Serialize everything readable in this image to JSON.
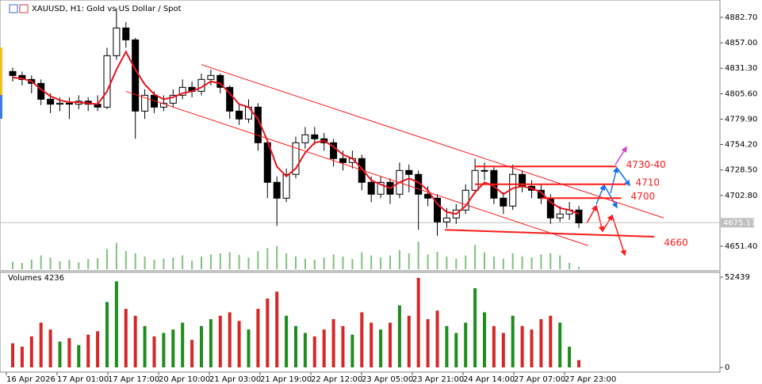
{
  "chart_data": {
    "type": "candlestick",
    "title": "XAUUSD, H1:  Gold vs US Dollar / Spot",
    "volume_title": "Volumes 4236",
    "open": [
      4828,
      4824,
      4820,
      4816,
      4800,
      4795,
      4796,
      4795,
      4798,
      4795,
      4792,
      4844,
      4872,
      4860,
      4788,
      4804,
      4792,
      4796,
      4804,
      4812,
      4808,
      4820,
      4824,
      4812,
      4788,
      4780,
      4792,
      4756,
      4716,
      4700,
      4724,
      4756,
      4764,
      4760,
      4756,
      4740,
      4736,
      4740,
      4716,
      4704,
      4716,
      4704,
      4728,
      4724,
      4704,
      4700,
      4676,
      4680,
      4688,
      4708,
      4728,
      4728,
      4700,
      4692,
      4724,
      4712,
      4708,
      4700,
      4680,
      4684,
      4688
    ],
    "high": [
      4832,
      4828,
      4824,
      4820,
      4806,
      4802,
      4802,
      4804,
      4802,
      4804,
      4852,
      4892,
      4878,
      4862,
      4810,
      4808,
      4804,
      4810,
      4820,
      4818,
      4826,
      4830,
      4826,
      4814,
      4796,
      4800,
      4796,
      4760,
      4722,
      4730,
      4762,
      4772,
      4772,
      4766,
      4760,
      4748,
      4748,
      4744,
      4722,
      4722,
      4720,
      4736,
      4734,
      4728,
      4712,
      4704,
      4690,
      4694,
      4714,
      4740,
      4736,
      4732,
      4706,
      4734,
      4728,
      4718,
      4714,
      4704,
      4692,
      4696,
      4692
    ],
    "low": [
      4818,
      4814,
      4806,
      4794,
      4786,
      4788,
      4780,
      4790,
      4788,
      4788,
      4790,
      4840,
      4852,
      4760,
      4780,
      4786,
      4788,
      4792,
      4800,
      4802,
      4804,
      4814,
      4806,
      4780,
      4774,
      4776,
      4748,
      4700,
      4672,
      4696,
      4720,
      4750,
      4754,
      4748,
      4732,
      4728,
      4730,
      4708,
      4696,
      4700,
      4694,
      4700,
      4706,
      4668,
      4692,
      4662,
      4670,
      4674,
      4684,
      4704,
      4718,
      4694,
      4684,
      4688,
      4706,
      4700,
      4694,
      4674,
      4676,
      4678,
      4670
    ],
    "close": [
      4824,
      4820,
      4816,
      4800,
      4795,
      4796,
      4795,
      4798,
      4795,
      4792,
      4844,
      4872,
      4860,
      4788,
      4804,
      4792,
      4796,
      4804,
      4812,
      4808,
      4820,
      4824,
      4812,
      4788,
      4780,
      4792,
      4756,
      4716,
      4700,
      4724,
      4756,
      4764,
      4760,
      4756,
      4740,
      4736,
      4740,
      4716,
      4704,
      4716,
      4704,
      4728,
      4724,
      4704,
      4700,
      4676,
      4680,
      4688,
      4708,
      4728,
      4728,
      4700,
      4692,
      4724,
      4712,
      4708,
      4700,
      4680,
      4684,
      4688,
      4675
    ],
    "ma": [
      4822,
      4821,
      4818,
      4810,
      4803,
      4799,
      4797,
      4797,
      4796,
      4795,
      4808,
      4830,
      4848,
      4830,
      4815,
      4805,
      4800,
      4802,
      4806,
      4808,
      4812,
      4818,
      4816,
      4806,
      4795,
      4792,
      4780,
      4758,
      4732,
      4722,
      4730,
      4746,
      4756,
      4758,
      4752,
      4744,
      4740,
      4730,
      4718,
      4714,
      4710,
      4716,
      4720,
      4716,
      4708,
      4694,
      4686,
      4684,
      4692,
      4706,
      4716,
      4712,
      4704,
      4710,
      4712,
      4710,
      4706,
      4696,
      4690,
      4688,
      4684
    ],
    "volume": [
      14000,
      12000,
      18000,
      26000,
      22000,
      15000,
      17000,
      13000,
      19000,
      21000,
      38000,
      50000,
      34000,
      30000,
      24000,
      18000,
      20000,
      22000,
      26000,
      16000,
      24000,
      28000,
      30000,
      32000,
      27000,
      22000,
      34000,
      40000,
      44000,
      30000,
      24000,
      20000,
      18000,
      22000,
      28000,
      24000,
      19000,
      32000,
      26000,
      22000,
      26000,
      36000,
      30000,
      52000,
      28000,
      33000,
      24000,
      20000,
      26000,
      46000,
      32000,
      24000,
      20000,
      30000,
      24000,
      22000,
      28000,
      30000,
      26000,
      12000,
      4236
    ],
    "ma_color": "#e8141e",
    "up_volume_color": "#1e8c1e",
    "down_volume_color": "#d62728",
    "annotation_color": "#ff1a1a",
    "ylim": [
      4628.2,
      4900.3
    ],
    "yticks": [
      {
        "value": 4882.7,
        "label": "4882.70"
      },
      {
        "value": 4857,
        "label": "4857.00"
      },
      {
        "value": 4831.3,
        "label": "4831.30"
      },
      {
        "value": 4805.6,
        "label": "4805.60"
      },
      {
        "value": 4779.9,
        "label": "4779.90"
      },
      {
        "value": 4754.2,
        "label": "4754.20"
      },
      {
        "value": 4728.5,
        "label": "4728.50"
      },
      {
        "value": 4702.8,
        "label": "4702.80"
      },
      {
        "value": 4651.4,
        "label": "4651.40"
      }
    ],
    "current_price": {
      "value": 4675.17,
      "label": "4675.17"
    },
    "volume_ylim": [
      0,
      52439
    ],
    "volume_yticks": [
      0,
      52439
    ],
    "x_labels": [
      "16 Apr 2026",
      "17 Apr 01:00",
      "17 Apr 17:00",
      "20 Apr 10:00",
      "21 Apr 03:00",
      "21 Apr 19:00",
      "22 Apr 12:00",
      "23 Apr 05:00",
      "23 Apr 21:00",
      "24 Apr 14:00",
      "27 Apr 07:00",
      "27 Apr 23:00"
    ],
    "trendlines": [
      {
        "x": [
          20,
          69
        ],
        "y": [
          4835,
          4680
        ]
      },
      {
        "x": [
          12,
          61
        ],
        "y": [
          4808,
          4652
        ]
      }
    ],
    "levels": [
      {
        "label": "4730-40",
        "x": [
          49,
          64
        ],
        "y": [
          4732,
          4732
        ]
      },
      {
        "label": "4710",
        "x": [
          49,
          65
        ],
        "y": [
          4714,
          4714
        ]
      },
      {
        "label": "4700",
        "x": [
          56,
          64.5
        ],
        "y": [
          4700,
          4700
        ]
      },
      {
        "label": "4660",
        "x": [
          45.8,
          68
        ],
        "y": [
          4668,
          4661
        ]
      }
    ]
  }
}
